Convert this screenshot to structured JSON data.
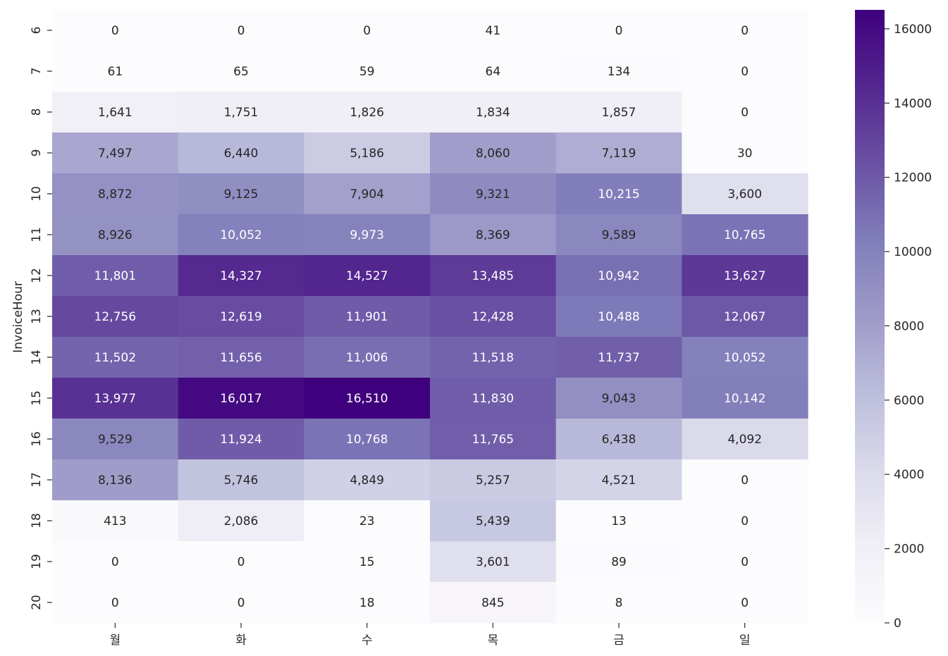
{
  "chart_data": {
    "type": "heatmap",
    "title": "",
    "xlabel": "",
    "ylabel": "InvoiceHour",
    "x_categories": [
      "월",
      "화",
      "수",
      "목",
      "금",
      "일"
    ],
    "y_categories": [
      "6",
      "7",
      "8",
      "9",
      "10",
      "11",
      "12",
      "13",
      "14",
      "15",
      "16",
      "17",
      "18",
      "19",
      "20"
    ],
    "values": [
      [
        0,
        0,
        0,
        41,
        0,
        0
      ],
      [
        61,
        65,
        59,
        64,
        134,
        0
      ],
      [
        1641,
        1751,
        1826,
        1834,
        1857,
        0
      ],
      [
        7497,
        6440,
        5186,
        8060,
        7119,
        30
      ],
      [
        8872,
        9125,
        7904,
        9321,
        10215,
        3600
      ],
      [
        8926,
        10052,
        9973,
        8369,
        9589,
        10765
      ],
      [
        11801,
        14327,
        14527,
        13485,
        10942,
        13627
      ],
      [
        12756,
        12619,
        11901,
        12428,
        10488,
        12067
      ],
      [
        11502,
        11656,
        11006,
        11518,
        11737,
        10052
      ],
      [
        13977,
        16017,
        16510,
        11830,
        9043,
        10142
      ],
      [
        9529,
        11924,
        10768,
        11765,
        6438,
        4092
      ],
      [
        8136,
        5746,
        4849,
        5257,
        4521,
        0
      ],
      [
        413,
        2086,
        23,
        5439,
        13,
        0
      ],
      [
        0,
        0,
        15,
        3601,
        89,
        0
      ],
      [
        0,
        0,
        18,
        845,
        8,
        0
      ]
    ],
    "value_format": "thousands-comma",
    "colorbar": {
      "colormap": "Purples",
      "min": 0,
      "max": 16510,
      "ticks": [
        "0",
        "2000",
        "4000",
        "6000",
        "8000",
        "10000",
        "12000",
        "14000",
        "16000"
      ]
    },
    "grid": false,
    "legend": "colorbar-right"
  }
}
